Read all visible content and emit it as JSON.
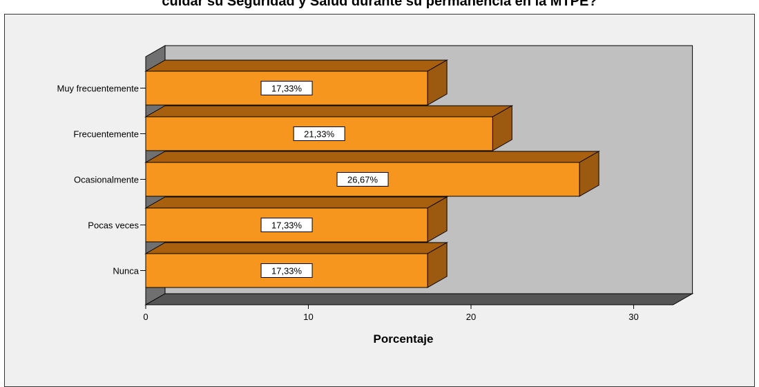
{
  "title": "cuidar su Seguridad y Salud durante su permanencia en la MTPE?",
  "colors": {
    "bar_front": "#f7961e",
    "bar_top": "#a8600f",
    "bar_side": "#9b5a10",
    "back_wall": "#c0c0c0",
    "floor": "#555555",
    "left_wall": "#707070",
    "frame_bg": "#f0f0f0"
  },
  "chart_data": {
    "type": "bar",
    "orientation": "horizontal",
    "categories": [
      "Muy frecuentemente",
      "Frecuentemente",
      "Ocasionalmente",
      "Pocas veces",
      "Nunca"
    ],
    "values": [
      17.33,
      21.33,
      26.67,
      17.33,
      17.33
    ],
    "data_labels": [
      "17,33%",
      "21,33%",
      "26,67%",
      "17,33%",
      "17,33%"
    ],
    "xlabel": "Porcentaje",
    "ylabel": "",
    "xlim": [
      0,
      32
    ],
    "xticks": [
      0,
      10,
      20,
      30
    ],
    "grid": false,
    "legend": "none",
    "style": "3d"
  }
}
